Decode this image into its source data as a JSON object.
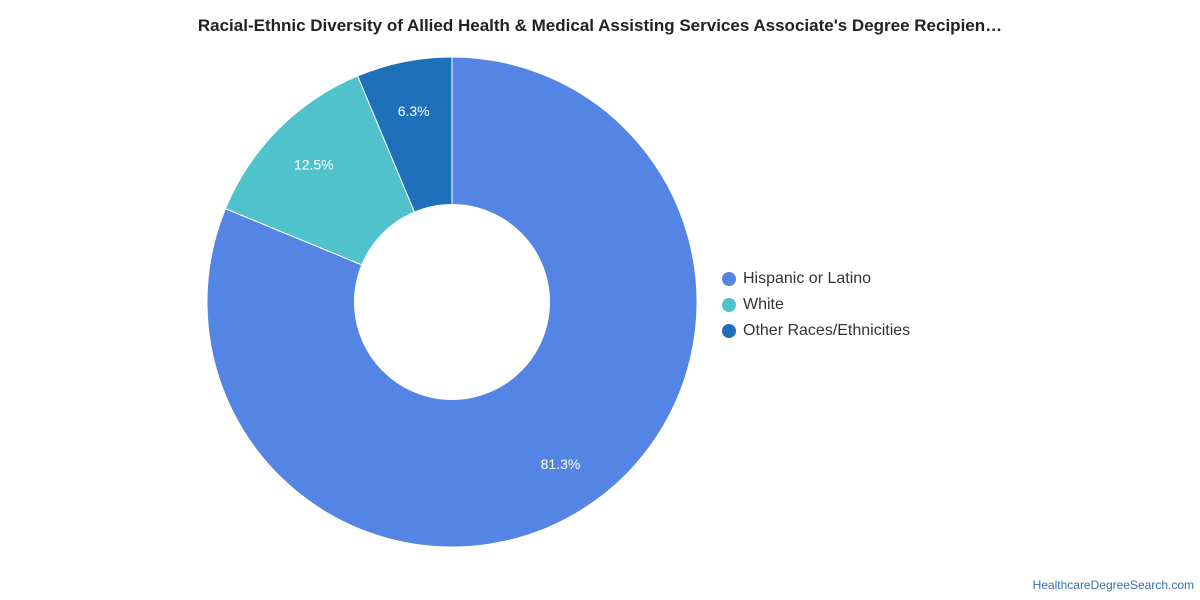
{
  "chart_data": {
    "type": "pie",
    "title": "Racial-Ethnic Diversity of Allied Health & Medical Assisting Services Associate's Degree Recipien…",
    "donut": true,
    "legend_position": "right",
    "slices": [
      {
        "label": "Hispanic or Latino",
        "value": 81.3,
        "display": "81.3%",
        "color": "#5485e4"
      },
      {
        "label": "White",
        "value": 12.5,
        "display": "12.5%",
        "color": "#50c2cc"
      },
      {
        "label": "Other Races/Ethnicities",
        "value": 6.3,
        "display": "6.3%",
        "color": "#1f70bb"
      }
    ]
  },
  "footer": {
    "source": "HealthcareDegreeSearch.com"
  }
}
